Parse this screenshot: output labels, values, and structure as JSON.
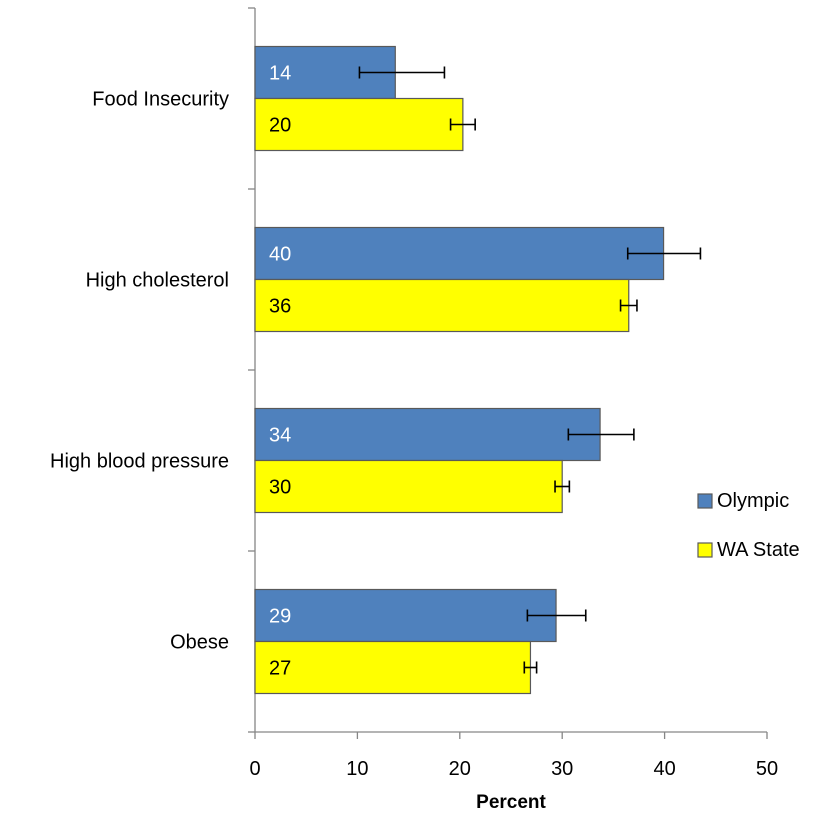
{
  "chart_data": {
    "type": "bar",
    "orientation": "horizontal",
    "title": "",
    "xlabel": "Percent",
    "ylabel": "",
    "xlim": [
      0,
      50
    ],
    "x_ticks": [
      0,
      10,
      20,
      30,
      40,
      50
    ],
    "grid": false,
    "legend_position": "right",
    "categories": [
      "Food Insecurity",
      "High cholesterol",
      "High blood pressure",
      "Obese"
    ],
    "series": [
      {
        "name": "Olympic",
        "color": "#4f81bd",
        "label_color": "#ffffff",
        "values": [
          14,
          40,
          34,
          29
        ],
        "bar_values": [
          13.7,
          39.9,
          33.7,
          29.4
        ],
        "error_low": [
          10.2,
          36.4,
          30.6,
          26.6
        ],
        "error_high": [
          18.5,
          43.5,
          37.0,
          32.3
        ]
      },
      {
        "name": "WA State",
        "color": "#ffff00",
        "label_color": "#000000",
        "values": [
          20,
          36,
          30,
          27
        ],
        "bar_values": [
          20.3,
          36.5,
          30.0,
          26.9
        ],
        "error_low": [
          19.1,
          35.7,
          29.3,
          26.3
        ],
        "error_high": [
          21.5,
          37.3,
          30.7,
          27.5
        ]
      }
    ]
  }
}
